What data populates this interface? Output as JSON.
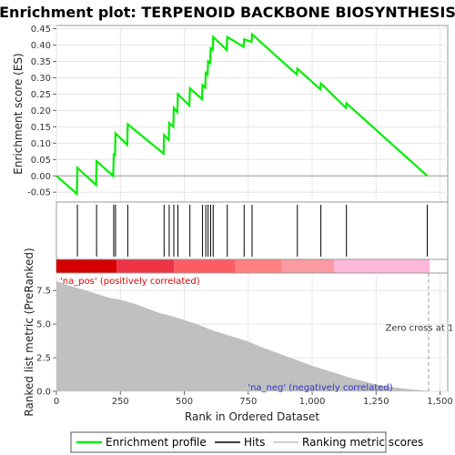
{
  "chart_data": {
    "type": "line",
    "title": "Enrichment plot: TERPENOID BACKBONE BIOSYNTHESIS",
    "xlabel": "Rank in Ordered Dataset",
    "x_ticks": [
      0,
      250,
      500,
      750,
      1000,
      1250,
      1500
    ],
    "x_tick_labels": [
      "0",
      "250",
      "500",
      "750",
      "1,000",
      "1,250",
      "1,500"
    ],
    "xlim": [
      0,
      1530
    ],
    "es_panel": {
      "ylabel": "Enrichment score (ES)",
      "ylim": [
        -0.08,
        0.46
      ],
      "y_ticks": [
        -0.05,
        0.0,
        0.05,
        0.1,
        0.15,
        0.2,
        0.25,
        0.3,
        0.35,
        0.4,
        0.45
      ],
      "y_tick_labels": [
        "-0.05",
        "0.00",
        "0.05",
        "0.10",
        "0.15",
        "0.20",
        "0.25",
        "0.30",
        "0.35",
        "0.40",
        "0.45"
      ],
      "series": [
        {
          "name": "Enrichment profile",
          "color": "#00ee00",
          "x": [
            0,
            80,
            82,
            155,
            157,
            222,
            224,
            229,
            231,
            277,
            279,
            419,
            421,
            439,
            441,
            457,
            459,
            473,
            475,
            520,
            522,
            569,
            571,
            582,
            584,
            591,
            593,
            601,
            603,
            611,
            613,
            666,
            668,
            732,
            734,
            763,
            765,
            940,
            942,
            1032,
            1034,
            1132,
            1134,
            1450
          ],
          "y": [
            0.0,
            -0.055,
            0.025,
            -0.028,
            0.045,
            0.0,
            0.068,
            0.06,
            0.13,
            0.095,
            0.158,
            0.068,
            0.125,
            0.11,
            0.162,
            0.15,
            0.208,
            0.195,
            0.25,
            0.215,
            0.268,
            0.235,
            0.278,
            0.27,
            0.315,
            0.31,
            0.35,
            0.345,
            0.39,
            0.385,
            0.425,
            0.385,
            0.425,
            0.395,
            0.418,
            0.41,
            0.433,
            0.31,
            0.328,
            0.265,
            0.283,
            0.208,
            0.222,
            0.0
          ]
        }
      ]
    },
    "hits_panel": {
      "legend_name": "Hits",
      "positions": [
        82,
        157,
        224,
        231,
        279,
        421,
        441,
        459,
        475,
        522,
        571,
        584,
        593,
        603,
        613,
        668,
        734,
        765,
        942,
        1034,
        1134,
        1450
      ]
    },
    "ranked_panel": {
      "legend_name": "Ranking metric scores",
      "ylabel": "Ranked list metric (PreRanked)",
      "ylim": [
        0,
        8.8
      ],
      "y_ticks": [
        0.0,
        2.5,
        5.0,
        7.5
      ],
      "y_tick_labels": [
        "0.0",
        "2.5",
        "5.0",
        "7.5"
      ],
      "x": [
        0,
        50,
        100,
        150,
        200,
        250,
        300,
        350,
        400,
        450,
        500,
        550,
        600,
        650,
        700,
        750,
        800,
        850,
        900,
        950,
        1000,
        1050,
        1100,
        1150,
        1200,
        1250,
        1300,
        1350,
        1400,
        1450,
        1460
      ],
      "values": [
        8.2,
        7.85,
        7.6,
        7.3,
        7.0,
        6.8,
        6.55,
        6.2,
        5.85,
        5.6,
        5.3,
        5.0,
        4.6,
        4.3,
        4.0,
        3.7,
        3.3,
        2.95,
        2.6,
        2.25,
        1.9,
        1.6,
        1.3,
        1.0,
        0.75,
        0.5,
        0.35,
        0.22,
        0.12,
        0.04,
        0.0
      ],
      "zero_cross_label": "Zero cross at 1",
      "zero_cross_x": 1455,
      "positive_label": "'na_pos' (positively correlated)",
      "negative_label": "'na_neg' (negatively correlated)"
    },
    "color_bar": {
      "segments": [
        {
          "from": 0,
          "to": 235,
          "color": "#d40000"
        },
        {
          "from": 235,
          "to": 460,
          "color": "#ee3344"
        },
        {
          "from": 460,
          "to": 700,
          "color": "#fb5d63"
        },
        {
          "from": 700,
          "to": 880,
          "color": "#ff8080"
        },
        {
          "from": 880,
          "to": 1085,
          "color": "#fb9aa0"
        },
        {
          "from": 1085,
          "to": 1460,
          "color": "#ffb8dc"
        },
        {
          "from": 1460,
          "to": 1530,
          "color": "#ffffff"
        }
      ]
    },
    "legend": {
      "placement": "bottom",
      "items": [
        "Enrichment profile",
        "Hits",
        "Ranking metric scores"
      ]
    }
  }
}
